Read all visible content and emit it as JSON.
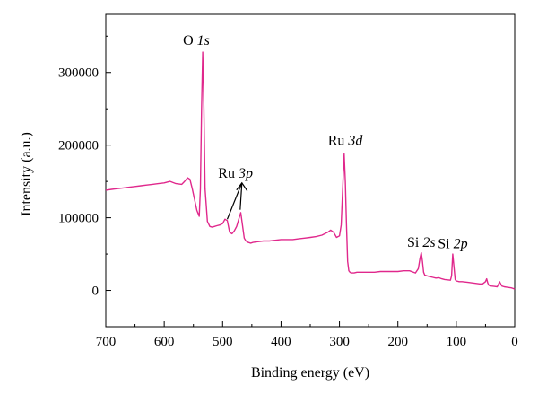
{
  "chart_data": {
    "type": "line",
    "title": "",
    "xlabel": "Binding energy (eV)",
    "ylabel": "Intensity (a.u.)",
    "x_reversed": true,
    "xlim": [
      700,
      0
    ],
    "ylim": [
      -50000,
      380000
    ],
    "x_ticks": [
      700,
      600,
      500,
      400,
      300,
      200,
      100,
      0
    ],
    "x_tick_labels": [
      "700",
      "600",
      "500",
      "400",
      "300",
      "200",
      "100",
      "0"
    ],
    "y_ticks": [
      0,
      100000,
      200000,
      300000
    ],
    "y_tick_labels": [
      "0",
      "100000",
      "200000",
      "300000"
    ],
    "grid": false,
    "legend": "none",
    "line_color": "#e0288c",
    "series": [
      {
        "x": [
          700,
          690,
          680,
          670,
          660,
          650,
          640,
          630,
          620,
          610,
          600,
          590,
          580,
          570,
          565,
          560,
          556,
          552,
          548,
          544,
          540,
          538,
          536,
          534,
          532,
          530,
          526,
          522,
          518,
          514,
          510,
          505,
          500,
          496,
          492,
          488,
          484,
          480,
          476,
          472,
          469,
          466,
          463,
          460,
          456,
          452,
          448,
          440,
          430,
          420,
          410,
          400,
          390,
          380,
          370,
          360,
          350,
          340,
          330,
          320,
          315,
          310,
          305,
          300,
          297,
          294,
          292,
          290,
          288,
          286,
          284,
          282,
          280,
          275,
          270,
          260,
          250,
          240,
          230,
          220,
          210,
          200,
          190,
          180,
          170,
          165,
          162,
          160,
          158,
          156,
          154,
          150,
          145,
          140,
          135,
          130,
          125,
          120,
          115,
          110,
          108,
          106,
          104,
          102,
          100,
          95,
          90,
          85,
          80,
          70,
          60,
          55,
          50,
          48,
          46,
          44,
          40,
          35,
          30,
          28,
          26,
          22,
          18,
          14,
          10,
          6,
          2,
          0
        ],
        "y": [
          138000,
          139000,
          140000,
          141000,
          142000,
          143000,
          144000,
          145000,
          146000,
          147000,
          148000,
          150000,
          147000,
          146000,
          150000,
          155000,
          153000,
          140000,
          125000,
          110000,
          102000,
          140000,
          250000,
          328000,
          250000,
          140000,
          95000,
          88000,
          87000,
          88000,
          89000,
          90000,
          92000,
          98000,
          96000,
          80000,
          78000,
          82000,
          88000,
          99000,
          107000,
          90000,
          72000,
          68000,
          66000,
          65000,
          66000,
          67000,
          68000,
          68000,
          69000,
          70000,
          70000,
          70000,
          71000,
          72000,
          73000,
          74000,
          76000,
          80000,
          83000,
          80000,
          73000,
          75000,
          90000,
          150000,
          188000,
          150000,
          90000,
          40000,
          27000,
          25000,
          24000,
          24000,
          25000,
          25000,
          25000,
          25000,
          26000,
          26000,
          26000,
          26000,
          27000,
          27000,
          24000,
          30000,
          45000,
          52000,
          40000,
          25000,
          21000,
          20000,
          19000,
          18000,
          17000,
          17500,
          16000,
          15000,
          14500,
          14000,
          20000,
          50000,
          32000,
          15000,
          13000,
          12000,
          12000,
          11500,
          11000,
          10000,
          9000,
          9000,
          12000,
          16000,
          10000,
          7000,
          6000,
          5500,
          5000,
          8000,
          12000,
          6000,
          5000,
          4500,
          4000,
          3500,
          2500,
          1500
        ]
      }
    ],
    "annotations": [
      {
        "prefix": "O ",
        "italic": "1s",
        "x": 545,
        "y": 338000
      },
      {
        "prefix": "Ru ",
        "italic": "3p",
        "x": 478,
        "y": 155000
      },
      {
        "prefix": "Ru ",
        "italic": "3d",
        "x": 290,
        "y": 200000
      },
      {
        "prefix": "Si ",
        "italic": "2s",
        "x": 160,
        "y": 60000
      },
      {
        "prefix": "Si ",
        "italic": "2p",
        "x": 106,
        "y": 58000
      }
    ]
  }
}
